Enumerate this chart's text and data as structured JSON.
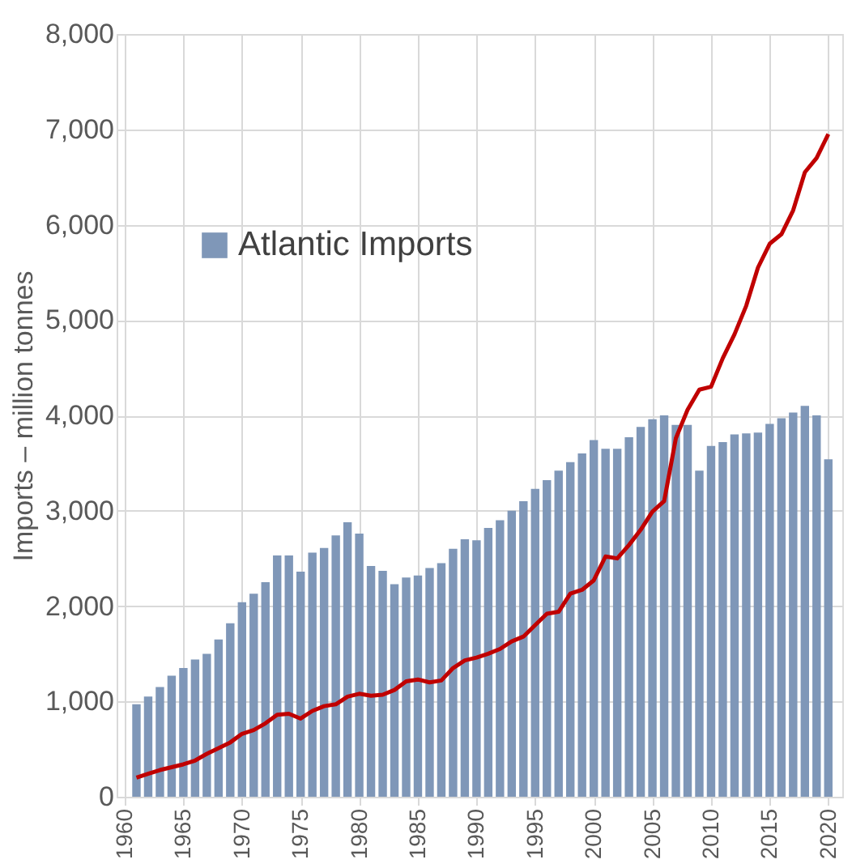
{
  "chart_data": {
    "type": "bar",
    "ylabel": "Imports – million tonnes",
    "x": [
      1961,
      1962,
      1963,
      1964,
      1965,
      1966,
      1967,
      1968,
      1969,
      1970,
      1971,
      1972,
      1973,
      1974,
      1975,
      1976,
      1977,
      1978,
      1979,
      1980,
      1981,
      1982,
      1983,
      1984,
      1985,
      1986,
      1987,
      1988,
      1989,
      1990,
      1991,
      1992,
      1993,
      1994,
      1995,
      1996,
      1997,
      1998,
      1999,
      2000,
      2001,
      2002,
      2003,
      2004,
      2005,
      2006,
      2007,
      2008,
      2009,
      2010,
      2011,
      2012,
      2013,
      2014,
      2015,
      2016,
      2017,
      2018,
      2019,
      2020
    ],
    "series": [
      {
        "name": "Atlantic Imports",
        "color": "#7f97b8",
        "values": [
          970,
          1050,
          1150,
          1270,
          1350,
          1440,
          1500,
          1650,
          1820,
          2040,
          2130,
          2250,
          2530,
          2530,
          2360,
          2560,
          2610,
          2740,
          2880,
          2760,
          2420,
          2370,
          2230,
          2300,
          2320,
          2400,
          2450,
          2600,
          2700,
          2690,
          2820,
          2900,
          3000,
          3100,
          3230,
          3320,
          3420,
          3510,
          3600,
          3740,
          3650,
          3650,
          3770,
          3880,
          3960,
          4000,
          3900,
          3900,
          3420,
          3680,
          3720,
          3800,
          3810,
          3820,
          3910,
          3970,
          4030,
          4100,
          4000,
          3540
        ]
      },
      {
        "type": "line",
        "color": "#c00000",
        "values": [
          200,
          240,
          280,
          310,
          340,
          380,
          450,
          510,
          570,
          660,
          700,
          770,
          860,
          870,
          820,
          900,
          950,
          970,
          1050,
          1080,
          1060,
          1070,
          1120,
          1210,
          1230,
          1200,
          1220,
          1350,
          1430,
          1460,
          1500,
          1550,
          1630,
          1680,
          1800,
          1920,
          1940,
          2130,
          2170,
          2270,
          2520,
          2500,
          2640,
          2800,
          2990,
          3100,
          3760,
          4060,
          4270,
          4300,
          4600,
          4850,
          5150,
          5550,
          5800,
          5900,
          6150,
          6550,
          6700,
          6950
        ]
      }
    ],
    "xlim": [
      1960,
      2020.5
    ],
    "xticks": [
      1960,
      1965,
      1970,
      1975,
      1980,
      1985,
      1990,
      1995,
      2000,
      2005,
      2010,
      2015,
      2020
    ],
    "ylim": [
      0,
      8000
    ],
    "yticks": [
      0,
      {
        "value": 1000,
        "label": "1,000"
      },
      {
        "value": 2000,
        "label": "2,000"
      },
      {
        "value": 3000,
        "label": "3,000"
      },
      {
        "value": 4000,
        "label": "4,000"
      },
      {
        "value": 5000,
        "label": "5,000"
      },
      {
        "value": 6000,
        "label": "6,000"
      },
      {
        "value": 7000,
        "label": "7,000"
      },
      {
        "value": 8000,
        "label": "8,000"
      }
    ],
    "grid": true,
    "legend": "top left",
    "line_style": "solid",
    "marker": "none"
  }
}
